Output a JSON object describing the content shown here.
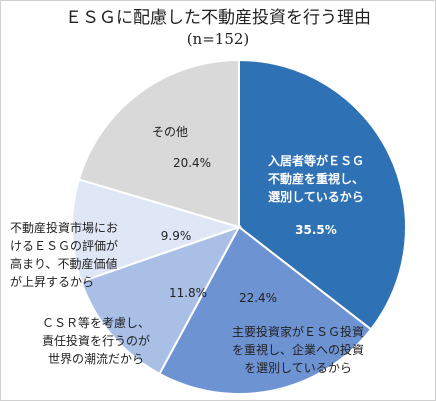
{
  "chart_data": {
    "type": "pie",
    "title": "ＥＳＧに配慮した不動産投資を行う理由",
    "subtitle": "(n=152)",
    "slices": [
      {
        "label_lines": [
          "入居者等がＥＳＧ",
          "不動産を重視し、",
          "選別しているから"
        ],
        "value": 35.5,
        "value_text": "35.5%",
        "color": "#2f71b5"
      },
      {
        "label_lines": [
          "主要投資家がＥＳＧ投資",
          "を重視し、企業への投資",
          "を選別しているから"
        ],
        "value": 22.4,
        "value_text": "22.4%",
        "color": "#6e93d3"
      },
      {
        "label_lines": [
          "ＣＳＲ等を考慮し、",
          "責任投資を行うのが",
          "世界の潮流だから"
        ],
        "value": 11.8,
        "value_text": "11.8%",
        "color": "#a9bfe6"
      },
      {
        "label_lines": [
          "不動産投資市場にお",
          "けるＥＳＧの評価が",
          "高まり、不動産価値",
          "が上昇するから"
        ],
        "value": 9.9,
        "value_text": "9.9%",
        "color": "#dfe6f6"
      },
      {
        "label_lines": [
          "その他"
        ],
        "value": 20.4,
        "value_text": "20.4%",
        "color": "#d9d9d9"
      }
    ]
  }
}
